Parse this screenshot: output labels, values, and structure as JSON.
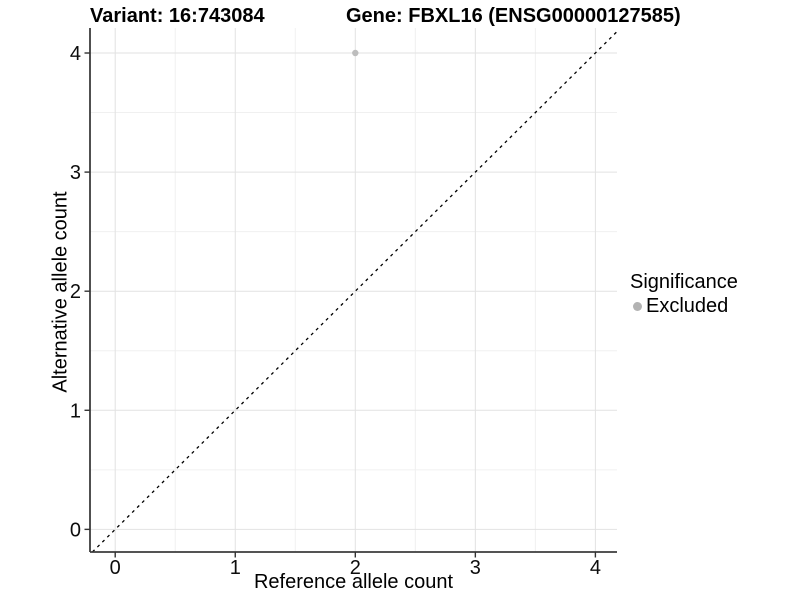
{
  "chart_data": {
    "type": "scatter",
    "title_left": "Variant: 16:743084",
    "title_right": "Gene: FBXL16 (ENSG00000127585)",
    "xlabel": "Reference allele count",
    "ylabel": "Alternative allele count",
    "xlim": [
      -0.21,
      4.18
    ],
    "ylim": [
      -0.19,
      4.21
    ],
    "x_ticks": [
      0,
      1,
      2,
      3,
      4
    ],
    "y_ticks": [
      0,
      1,
      2,
      3,
      4
    ],
    "x_minor_ticks": [
      0.5,
      1.5,
      2.5,
      3.5
    ],
    "y_minor_ticks": [
      0.5,
      1.5,
      2.5,
      3.5
    ],
    "grid": "major+minor",
    "identity_line": {
      "slope": 1,
      "intercept": 0,
      "style": "dashed",
      "color": "#000000"
    },
    "series": [
      {
        "name": "Excluded",
        "color": "#bdbdbd",
        "points": [
          {
            "x": 2,
            "y": 4
          }
        ]
      }
    ],
    "legend": {
      "title": "Significance",
      "position": "right",
      "items": [
        {
          "label": "Excluded",
          "color": "#b3b3b3"
        }
      ]
    },
    "colors": {
      "background": "#ffffff",
      "grid_major": "#e2e2e2",
      "grid_minor": "#f0f0f0",
      "axis_line": "#3c3c3c",
      "tick_mark": "#333333",
      "text": "#0d0d0d"
    }
  }
}
